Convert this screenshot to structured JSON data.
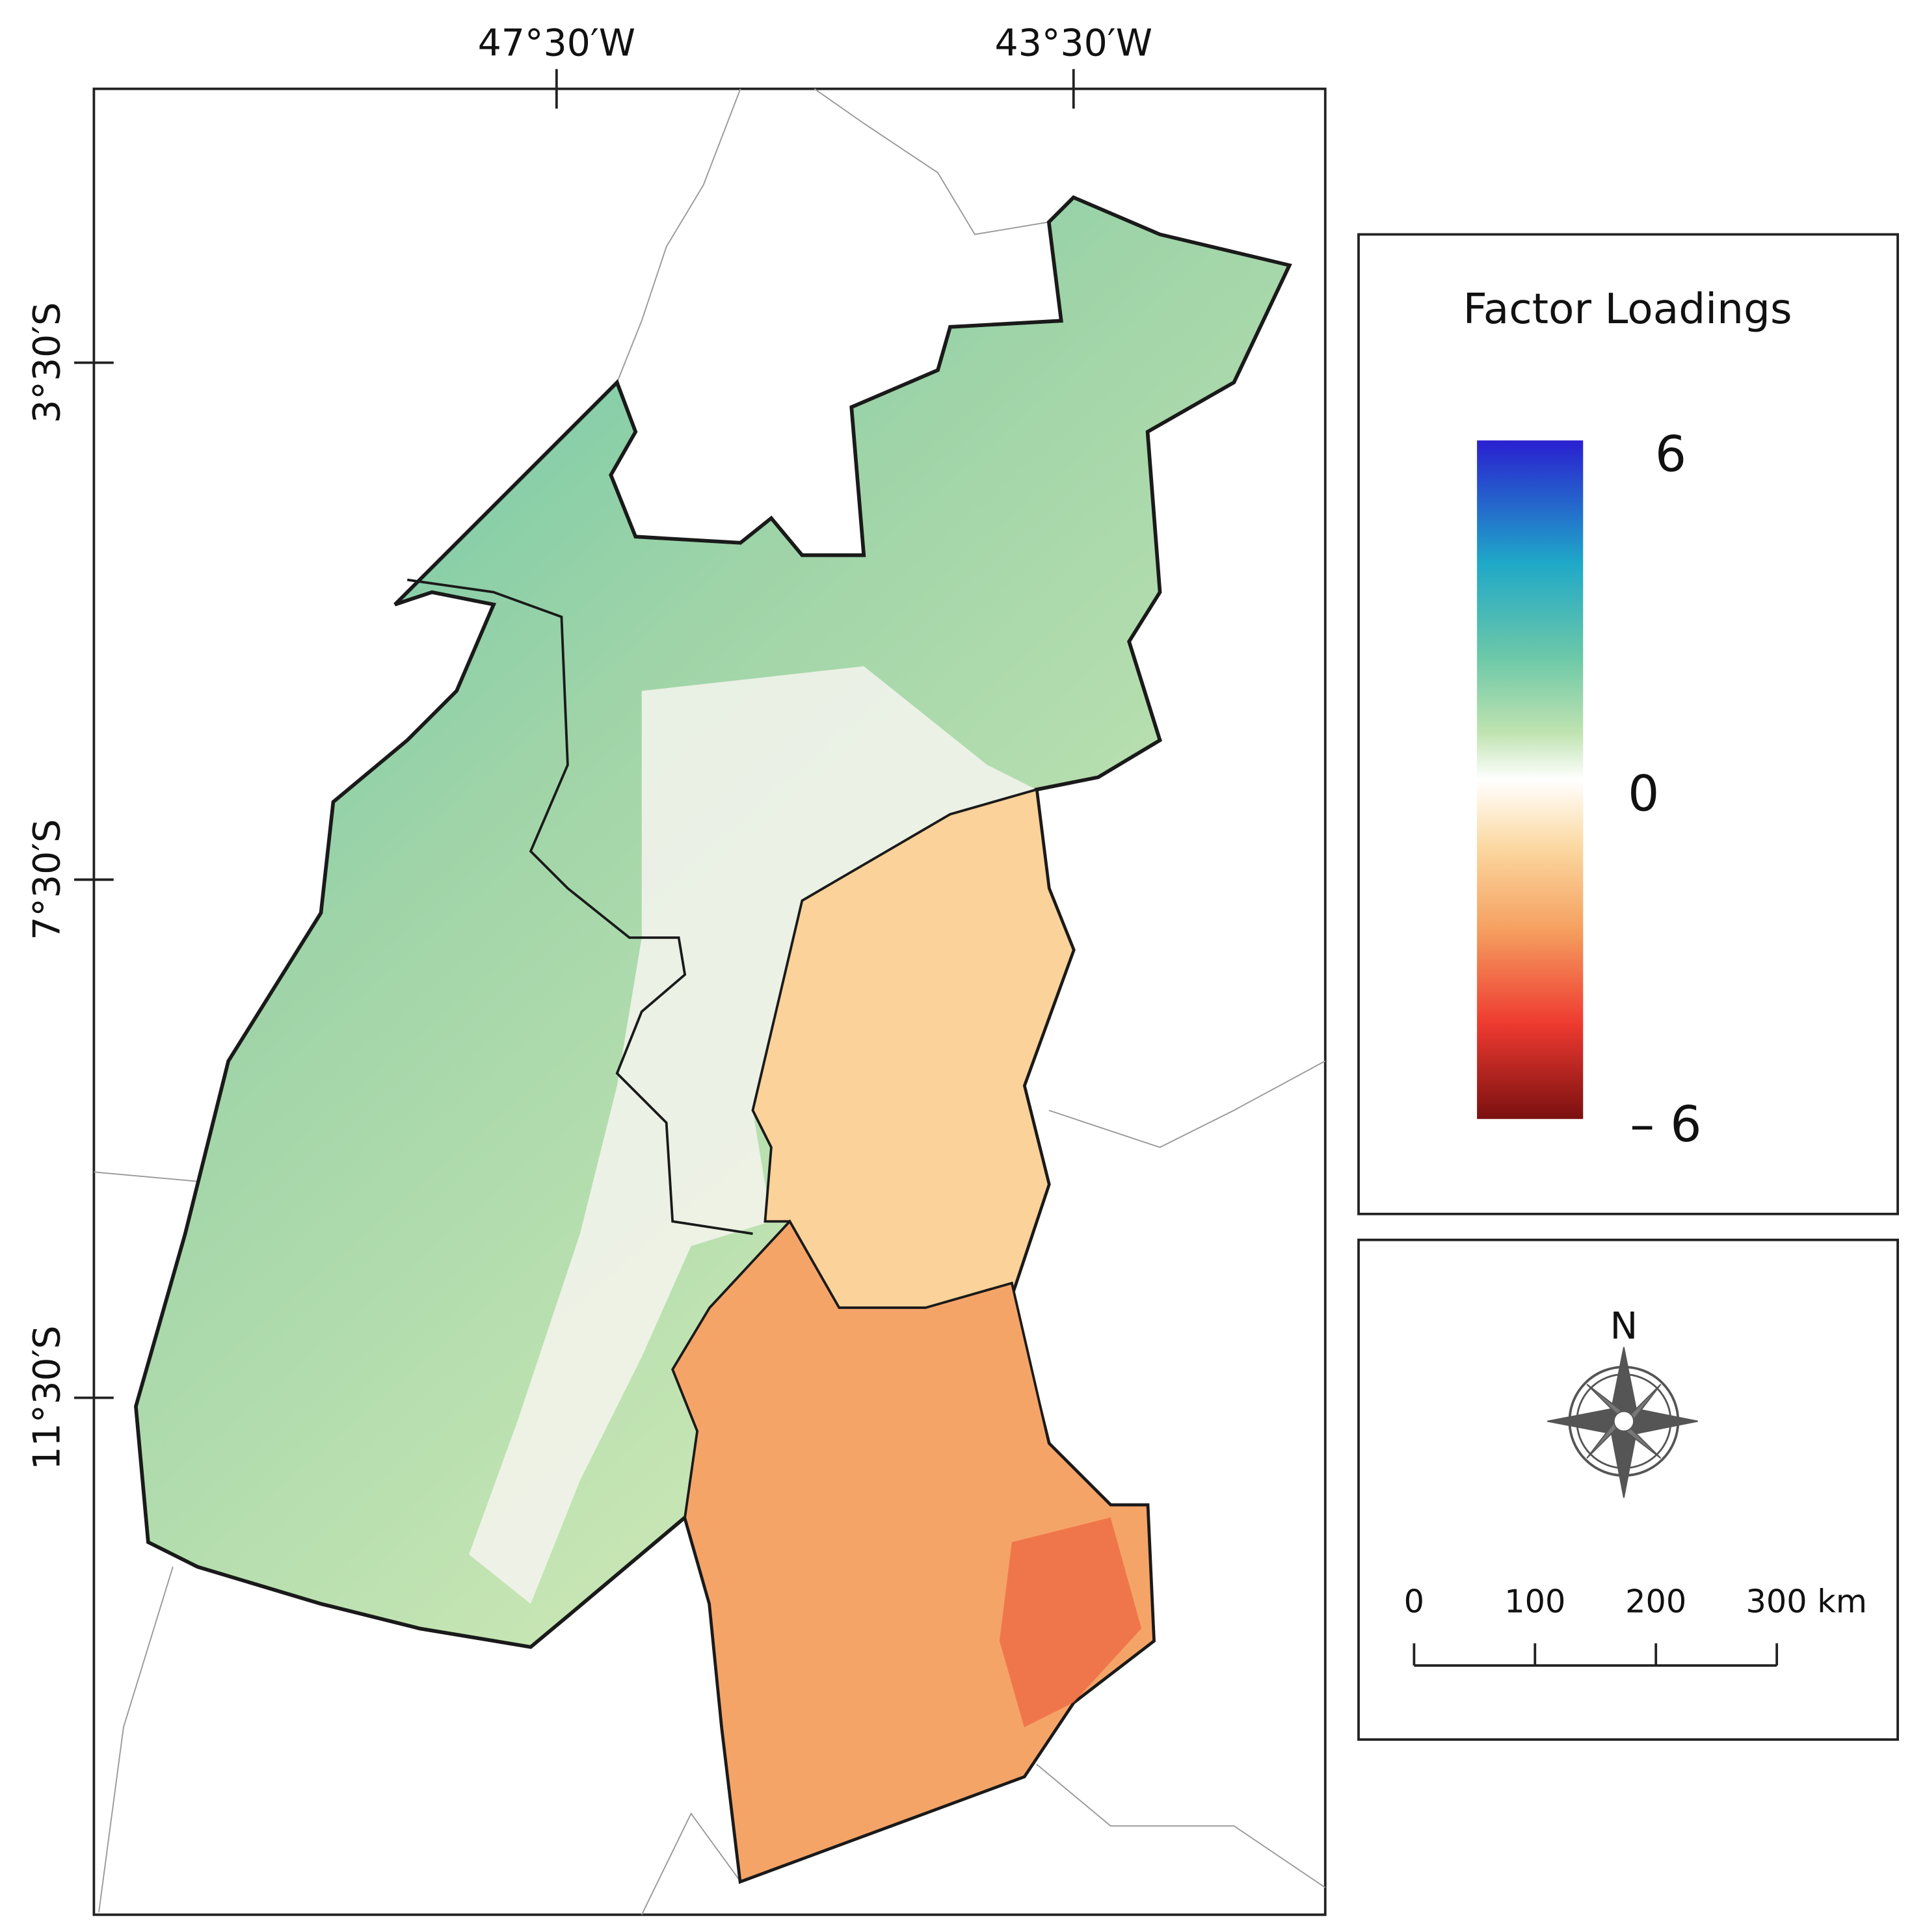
{
  "map": {
    "x_axis_labels": [
      "47°30′W",
      "43°30′W"
    ],
    "y_axis_labels": [
      "3°30′S",
      "7°30′S",
      "11°30′S"
    ],
    "legend": {
      "title": "Factor Loadings",
      "max_label": "6",
      "mid_label": "0",
      "min_label": "– 6"
    },
    "north_label": "N",
    "scale_bar": {
      "labels": [
        "0",
        "100",
        "200",
        "300 km"
      ]
    }
  }
}
